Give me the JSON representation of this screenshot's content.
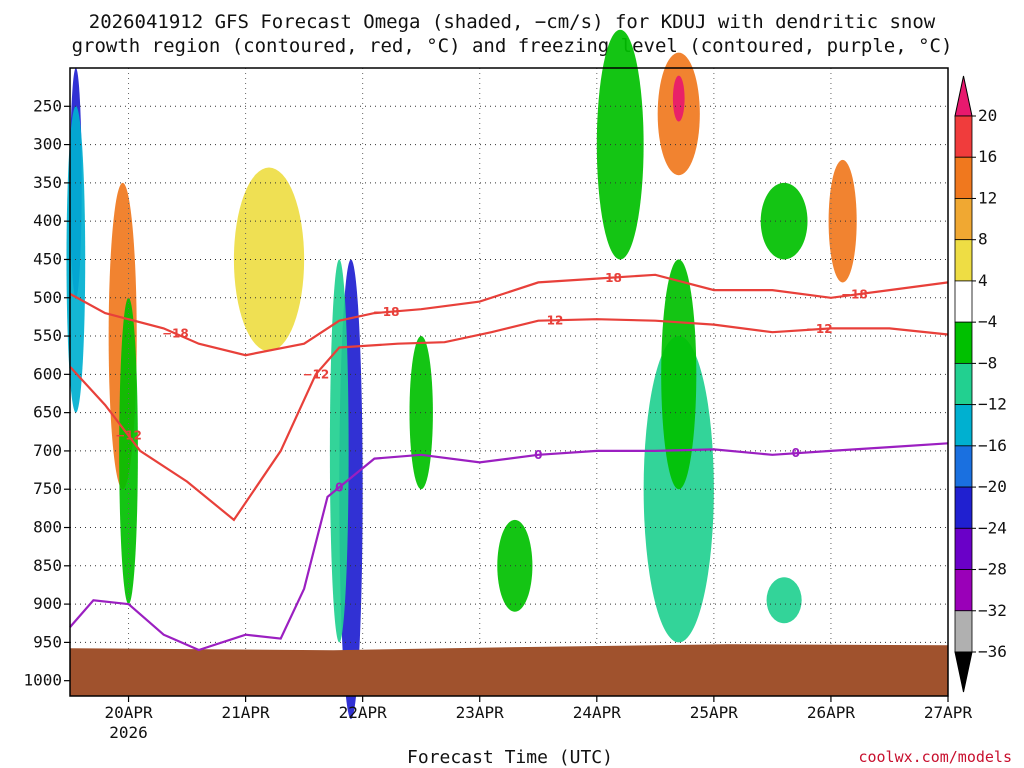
{
  "chart_data": {
    "type": "heatmap",
    "title_line1": "2026041912 GFS Forecast Omega (shaded, −cm/s) for KDUJ with dendritic snow",
    "title_line2": "growth region (contoured, red, °C) and freezing level (contoured, purple, °C)",
    "xlabel": "Forecast Time (UTC)",
    "ylabel": "",
    "credit": "coolwx.com/models",
    "station": "KDUJ",
    "run": "2026041912",
    "x_ticks": [
      {
        "t": 0.5,
        "label": "20APR",
        "sub": "2026"
      },
      {
        "t": 1.5,
        "label": "21APR",
        "sub": ""
      },
      {
        "t": 2.5,
        "label": "22APR",
        "sub": ""
      },
      {
        "t": 3.5,
        "label": "23APR",
        "sub": ""
      },
      {
        "t": 4.5,
        "label": "24APR",
        "sub": ""
      },
      {
        "t": 5.5,
        "label": "25APR",
        "sub": ""
      },
      {
        "t": 6.5,
        "label": "26APR",
        "sub": ""
      },
      {
        "t": 7.5,
        "label": "27APR",
        "sub": ""
      }
    ],
    "x_range_days": [
      0,
      7.5
    ],
    "y_ticks": [
      250,
      300,
      350,
      400,
      450,
      500,
      550,
      600,
      650,
      700,
      750,
      800,
      850,
      900,
      950,
      1000
    ],
    "y_range_hpa": [
      200,
      1020
    ],
    "colorbar": {
      "levels": [
        "20",
        "16",
        "12",
        "8",
        "4",
        "−4",
        "−8",
        "−12",
        "−16",
        "−20",
        "−24",
        "−28",
        "−32",
        "−36"
      ],
      "colors": [
        "#e8196e",
        "#f03c3c",
        "#f0781e",
        "#f0a832",
        "#eedd44",
        "#ffffff",
        "#00c000",
        "#22d090",
        "#00b0d0",
        "#1a70e0",
        "#2020d0",
        "#6a00c8",
        "#9a00b8",
        "#b0b0b0",
        "#000000"
      ]
    },
    "terrain": {
      "color": "#a0522d",
      "surface_hpa": 955
    },
    "contours": [
      {
        "level": -18,
        "color": "#e8403a",
        "labels_at": [
          2.7,
          4.6,
          6.7,
          0.9
        ],
        "points": [
          [
            0,
            495
          ],
          [
            0.3,
            520
          ],
          [
            0.8,
            540
          ],
          [
            1.1,
            560
          ],
          [
            1.5,
            575
          ],
          [
            2.0,
            560
          ],
          [
            2.3,
            530
          ],
          [
            2.6,
            520
          ],
          [
            3.0,
            515
          ],
          [
            3.5,
            505
          ],
          [
            4.0,
            480
          ],
          [
            4.5,
            475
          ],
          [
            5.0,
            470
          ],
          [
            5.5,
            490
          ],
          [
            6.0,
            490
          ],
          [
            6.5,
            500
          ],
          [
            7.0,
            490
          ],
          [
            7.5,
            480
          ]
        ]
      },
      {
        "level": -12,
        "color": "#e8403a",
        "labels_at": [
          2.1,
          4.1,
          6.4,
          0.5
        ],
        "points": [
          [
            0,
            590
          ],
          [
            0.3,
            640
          ],
          [
            0.6,
            700
          ],
          [
            1.0,
            740
          ],
          [
            1.4,
            790
          ],
          [
            1.8,
            700
          ],
          [
            2.1,
            600
          ],
          [
            2.3,
            565
          ],
          [
            2.8,
            560
          ],
          [
            3.2,
            558
          ],
          [
            3.6,
            545
          ],
          [
            4.0,
            530
          ],
          [
            4.5,
            528
          ],
          [
            5.0,
            530
          ],
          [
            5.5,
            535
          ],
          [
            6.0,
            545
          ],
          [
            6.5,
            540
          ],
          [
            7.0,
            540
          ],
          [
            7.5,
            548
          ]
        ]
      },
      {
        "level": 0,
        "color": "#9b1fc1",
        "labels_at": [
          2.3,
          4.0,
          6.2
        ],
        "points": [
          [
            0,
            930
          ],
          [
            0.2,
            895
          ],
          [
            0.5,
            900
          ],
          [
            0.8,
            940
          ],
          [
            1.1,
            960
          ],
          [
            1.5,
            940
          ],
          [
            1.8,
            945
          ],
          [
            2.0,
            880
          ],
          [
            2.2,
            760
          ],
          [
            2.6,
            710
          ],
          [
            3.0,
            705
          ],
          [
            3.5,
            715
          ],
          [
            4.0,
            705
          ],
          [
            4.5,
            700
          ],
          [
            5.0,
            700
          ],
          [
            5.5,
            698
          ],
          [
            6.0,
            705
          ],
          [
            6.5,
            700
          ],
          [
            7.0,
            695
          ],
          [
            7.5,
            690
          ]
        ]
      }
    ],
    "omega_blobs": [
      {
        "t": 0.05,
        "p": 350,
        "dt": 0.05,
        "dp": 150,
        "value": -24
      },
      {
        "t": 0.05,
        "p": 450,
        "dt": 0.08,
        "dp": 200,
        "value": -16
      },
      {
        "t": 0.45,
        "p": 550,
        "dt": 0.12,
        "dp": 200,
        "value": 12
      },
      {
        "t": 0.5,
        "p": 700,
        "dt": 0.08,
        "dp": 200,
        "value": -8
      },
      {
        "t": 2.4,
        "p": 750,
        "dt": 0.1,
        "dp": 300,
        "value": -24
      },
      {
        "t": 2.3,
        "p": 700,
        "dt": 0.08,
        "dp": 250,
        "value": -12
      },
      {
        "t": 5.2,
        "p": 750,
        "dt": 0.3,
        "dp": 200,
        "value": -12
      },
      {
        "t": 5.2,
        "p": 600,
        "dt": 0.15,
        "dp": 150,
        "value": -8
      },
      {
        "t": 5.2,
        "p": 260,
        "dt": 0.18,
        "dp": 80,
        "value": 12
      },
      {
        "t": 5.2,
        "p": 240,
        "dt": 0.05,
        "dp": 30,
        "value": 20
      },
      {
        "t": 6.6,
        "p": 400,
        "dt": 0.12,
        "dp": 80,
        "value": 12
      },
      {
        "t": 6.1,
        "p": 400,
        "dt": 0.2,
        "dp": 50,
        "value": -8
      },
      {
        "t": 4.7,
        "p": 300,
        "dt": 0.2,
        "dp": 150,
        "value": -8
      },
      {
        "t": 1.7,
        "p": 450,
        "dt": 0.3,
        "dp": 120,
        "value": 4
      },
      {
        "t": 3.0,
        "p": 650,
        "dt": 0.1,
        "dp": 100,
        "value": -8
      },
      {
        "t": 3.8,
        "p": 850,
        "dt": 0.15,
        "dp": 60,
        "value": -8
      },
      {
        "t": 6.1,
        "p": 895,
        "dt": 0.15,
        "dp": 30,
        "value": -12
      }
    ]
  }
}
